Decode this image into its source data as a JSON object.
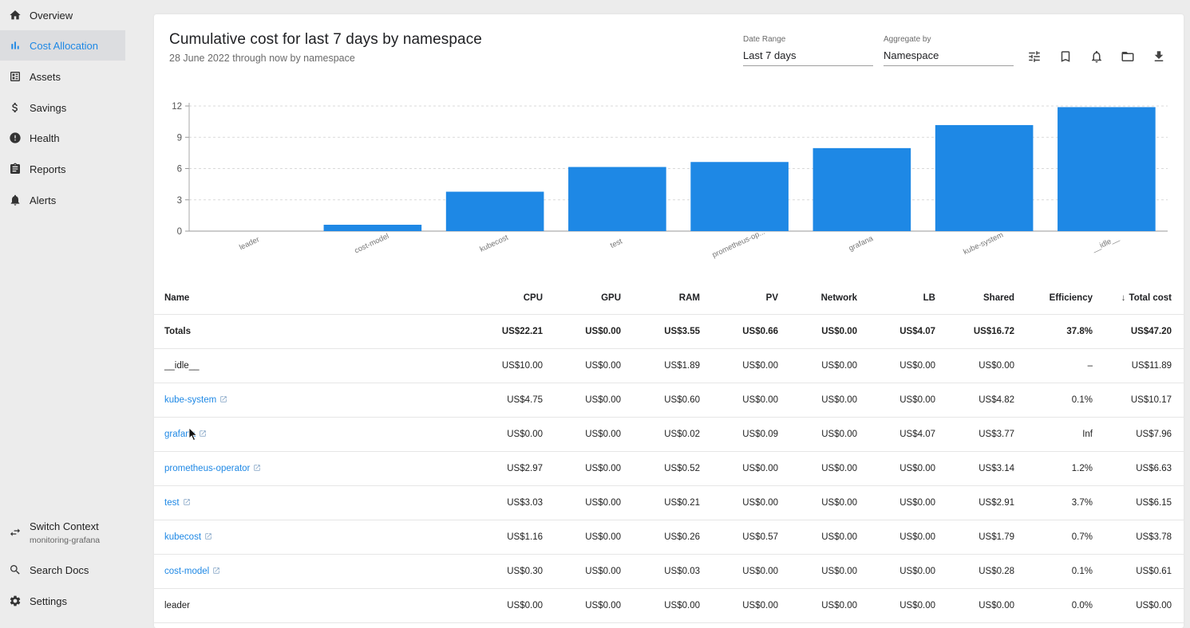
{
  "sidebar": {
    "items": [
      {
        "label": "Overview",
        "icon": "home-icon"
      },
      {
        "label": "Cost Allocation",
        "icon": "bar-chart-icon",
        "active": true
      },
      {
        "label": "Assets",
        "icon": "assets-icon"
      },
      {
        "label": "Savings",
        "icon": "dollar-icon"
      },
      {
        "label": "Health",
        "icon": "alert-circle-icon"
      },
      {
        "label": "Reports",
        "icon": "clipboard-icon"
      },
      {
        "label": "Alerts",
        "icon": "bell-icon"
      }
    ],
    "switch_context": {
      "label": "Switch Context",
      "sub": "monitoring-grafana",
      "icon": "swap-icon"
    },
    "search_docs": {
      "label": "Search Docs",
      "icon": "search-icon"
    },
    "settings": {
      "label": "Settings",
      "icon": "gear-icon"
    }
  },
  "header": {
    "title": "Cumulative cost for last 7 days by namespace",
    "subtitle": "28 June 2022 through now by namespace",
    "date_range": {
      "label": "Date Range",
      "value": "Last 7 days"
    },
    "aggregate": {
      "label": "Aggregate by",
      "value": "Namespace"
    },
    "tools": [
      "filter-icon",
      "bookmark-icon",
      "bell-icon",
      "folder-icon",
      "download-icon"
    ]
  },
  "chart_data": {
    "type": "bar",
    "categories": [
      "leader",
      "cost-model",
      "kubecost",
      "test",
      "prometheus-op...",
      "grafana",
      "kube-system",
      "__idle__"
    ],
    "values": [
      0.0,
      0.61,
      3.78,
      6.15,
      6.63,
      7.96,
      10.17,
      11.89
    ],
    "ylim": [
      0,
      12
    ],
    "yticks": [
      0,
      3,
      6,
      9,
      12
    ],
    "grid": true,
    "color": "#1e88e5"
  },
  "table": {
    "columns": [
      "Name",
      "CPU",
      "GPU",
      "RAM",
      "PV",
      "Network",
      "LB",
      "Shared",
      "Efficiency",
      "Total cost"
    ],
    "sort_indicator": "↓",
    "totals": [
      "Totals",
      "US$22.21",
      "US$0.00",
      "US$3.55",
      "US$0.66",
      "US$0.00",
      "US$4.07",
      "US$16.72",
      "37.8%",
      "US$47.20"
    ],
    "rows": [
      {
        "cells": [
          "__idle__",
          "US$10.00",
          "US$0.00",
          "US$1.89",
          "US$0.00",
          "US$0.00",
          "US$0.00",
          "US$0.00",
          "–",
          "US$11.89"
        ],
        "link": false
      },
      {
        "cells": [
          "kube-system",
          "US$4.75",
          "US$0.00",
          "US$0.60",
          "US$0.00",
          "US$0.00",
          "US$0.00",
          "US$4.82",
          "0.1%",
          "US$10.17"
        ],
        "link": true
      },
      {
        "cells": [
          "grafana",
          "US$0.00",
          "US$0.00",
          "US$0.02",
          "US$0.09",
          "US$0.00",
          "US$4.07",
          "US$3.77",
          "Inf",
          "US$7.96"
        ],
        "link": true
      },
      {
        "cells": [
          "prometheus-operator",
          "US$2.97",
          "US$0.00",
          "US$0.52",
          "US$0.00",
          "US$0.00",
          "US$0.00",
          "US$3.14",
          "1.2%",
          "US$6.63"
        ],
        "link": true
      },
      {
        "cells": [
          "test",
          "US$3.03",
          "US$0.00",
          "US$0.21",
          "US$0.00",
          "US$0.00",
          "US$0.00",
          "US$2.91",
          "3.7%",
          "US$6.15"
        ],
        "link": true
      },
      {
        "cells": [
          "kubecost",
          "US$1.16",
          "US$0.00",
          "US$0.26",
          "US$0.57",
          "US$0.00",
          "US$0.00",
          "US$1.79",
          "0.7%",
          "US$3.78"
        ],
        "link": true
      },
      {
        "cells": [
          "cost-model",
          "US$0.30",
          "US$0.00",
          "US$0.03",
          "US$0.00",
          "US$0.00",
          "US$0.00",
          "US$0.28",
          "0.1%",
          "US$0.61"
        ],
        "link": true
      },
      {
        "cells": [
          "leader",
          "US$0.00",
          "US$0.00",
          "US$0.00",
          "US$0.00",
          "US$0.00",
          "US$0.00",
          "US$0.00",
          "0.0%",
          "US$0.00"
        ],
        "link": false
      }
    ]
  }
}
